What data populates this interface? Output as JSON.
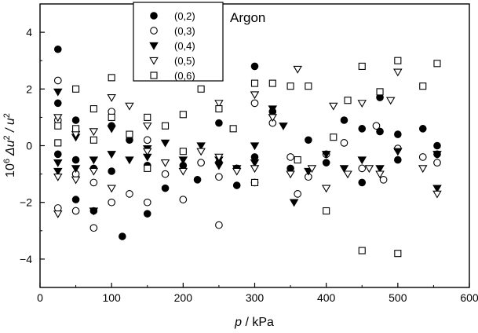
{
  "chart_data": {
    "type": "scatter",
    "annotation": "Argon",
    "xlabel_var": "p",
    "xlabel_unit": " / kPa",
    "ylabel_prefix": "10",
    "ylabel_prefix_sup": "6",
    "ylabel_mid": " Δu",
    "ylabel_mid_sup": "2",
    "ylabel_end": " / u",
    "ylabel_end_sup": "2",
    "xlim": [
      0,
      600
    ],
    "ylim": [
      -5,
      5
    ],
    "x_ticks": [
      0,
      100,
      200,
      300,
      400,
      500,
      600
    ],
    "y_ticks": [
      -4,
      -2,
      0,
      2,
      4
    ],
    "grid": false,
    "legend_position": "top-left (inside plot)",
    "series": [
      {
        "name": "(0,2)",
        "marker": "filled-circle",
        "points": [
          [
            25,
            3.4
          ],
          [
            25,
            1.5
          ],
          [
            25,
            -0.3
          ],
          [
            50,
            0.9
          ],
          [
            50,
            -0.5
          ],
          [
            50,
            -1.9
          ],
          [
            75,
            -0.8
          ],
          [
            75,
            -2.3
          ],
          [
            100,
            0.7
          ],
          [
            100,
            -0.9
          ],
          [
            115,
            -3.2
          ],
          [
            125,
            0.2
          ],
          [
            150,
            -2.4
          ],
          [
            150,
            -0.7
          ],
          [
            175,
            -1.5
          ],
          [
            200,
            -0.7
          ],
          [
            220,
            -1.2
          ],
          [
            250,
            0.8
          ],
          [
            250,
            -0.6
          ],
          [
            275,
            -1.4
          ],
          [
            300,
            2.8
          ],
          [
            300,
            -0.4
          ],
          [
            325,
            1.2
          ],
          [
            350,
            -0.8
          ],
          [
            375,
            0.2
          ],
          [
            400,
            -0.6
          ],
          [
            425,
            0.9
          ],
          [
            450,
            -1.3
          ],
          [
            450,
            0.6
          ],
          [
            475,
            1.7
          ],
          [
            475,
            0.5
          ],
          [
            500,
            0.4
          ],
          [
            500,
            -0.5
          ],
          [
            535,
            0.6
          ],
          [
            555,
            0.0
          ],
          [
            555,
            -0.3
          ]
        ]
      },
      {
        "name": "(0,3)",
        "marker": "open-circle",
        "points": [
          [
            25,
            2.3
          ],
          [
            25,
            -2.2
          ],
          [
            25,
            0.9
          ],
          [
            50,
            -2.3
          ],
          [
            50,
            -1.0
          ],
          [
            75,
            -2.9
          ],
          [
            75,
            -1.3
          ],
          [
            100,
            -2.0
          ],
          [
            100,
            1.2
          ],
          [
            125,
            -1.7
          ],
          [
            150,
            -2.0
          ],
          [
            150,
            0.2
          ],
          [
            175,
            -1.0
          ],
          [
            200,
            -1.9
          ],
          [
            225,
            -0.6
          ],
          [
            250,
            -2.8
          ],
          [
            250,
            -1.1
          ],
          [
            275,
            -0.8
          ],
          [
            300,
            1.5
          ],
          [
            300,
            -1.3
          ],
          [
            325,
            0.8
          ],
          [
            350,
            -0.4
          ],
          [
            360,
            -1.7
          ],
          [
            375,
            -1.1
          ],
          [
            400,
            -0.3
          ],
          [
            425,
            0.1
          ],
          [
            450,
            -0.8
          ],
          [
            470,
            0.7
          ],
          [
            480,
            -1.2
          ],
          [
            500,
            -0.1
          ],
          [
            535,
            -0.4
          ],
          [
            555,
            -0.6
          ]
        ]
      },
      {
        "name": "(0,4)",
        "marker": "filled-triangle-down",
        "points": [
          [
            25,
            1.9
          ],
          [
            25,
            -0.6
          ],
          [
            25,
            -0.9
          ],
          [
            50,
            0.3
          ],
          [
            50,
            -0.8
          ],
          [
            75,
            -0.5
          ],
          [
            75,
            -2.3
          ],
          [
            100,
            -0.3
          ],
          [
            100,
            0.6
          ],
          [
            125,
            -0.5
          ],
          [
            150,
            -0.1
          ],
          [
            150,
            -0.4
          ],
          [
            175,
            0.1
          ],
          [
            200,
            -0.5
          ],
          [
            225,
            0.0
          ],
          [
            250,
            -0.5
          ],
          [
            250,
            -0.7
          ],
          [
            275,
            -0.8
          ],
          [
            300,
            0.0
          ],
          [
            300,
            -0.6
          ],
          [
            325,
            1.3
          ],
          [
            340,
            0.7
          ],
          [
            355,
            -2.0
          ],
          [
            375,
            -0.9
          ],
          [
            400,
            -0.3
          ],
          [
            425,
            -0.8
          ],
          [
            450,
            -0.5
          ],
          [
            475,
            -0.8
          ],
          [
            500,
            -0.2
          ],
          [
            555,
            -1.5
          ],
          [
            555,
            -0.3
          ]
        ]
      },
      {
        "name": "(0,5)",
        "marker": "open-triangle-down",
        "points": [
          [
            25,
            -2.4
          ],
          [
            25,
            -1.1
          ],
          [
            25,
            1.0
          ],
          [
            50,
            -1.2
          ],
          [
            50,
            0.4
          ],
          [
            75,
            -0.9
          ],
          [
            75,
            0.5
          ],
          [
            100,
            -1.5
          ],
          [
            100,
            1.7
          ],
          [
            125,
            1.4
          ],
          [
            150,
            -0.2
          ],
          [
            150,
            0.7
          ],
          [
            175,
            -0.6
          ],
          [
            200,
            -0.9
          ],
          [
            225,
            -0.2
          ],
          [
            250,
            1.5
          ],
          [
            250,
            -0.4
          ],
          [
            275,
            -0.9
          ],
          [
            300,
            1.8
          ],
          [
            300,
            -0.8
          ],
          [
            325,
            1.0
          ],
          [
            350,
            -1.0
          ],
          [
            360,
            2.7
          ],
          [
            380,
            -0.8
          ],
          [
            400,
            -1.5
          ],
          [
            410,
            1.4
          ],
          [
            430,
            -1.0
          ],
          [
            450,
            1.5
          ],
          [
            460,
            -0.8
          ],
          [
            475,
            -1.0
          ],
          [
            490,
            1.6
          ],
          [
            500,
            2.6
          ],
          [
            535,
            -0.8
          ],
          [
            555,
            -1.7
          ]
        ]
      },
      {
        "name": "(0,6)",
        "marker": "open-square",
        "points": [
          [
            25,
            0.7
          ],
          [
            25,
            0.1
          ],
          [
            50,
            2.0
          ],
          [
            50,
            0.6
          ],
          [
            75,
            1.3
          ],
          [
            75,
            0.2
          ],
          [
            100,
            2.4
          ],
          [
            100,
            1.0
          ],
          [
            125,
            0.4
          ],
          [
            150,
            1.0
          ],
          [
            150,
            -0.8
          ],
          [
            175,
            0.7
          ],
          [
            200,
            1.1
          ],
          [
            200,
            -0.2
          ],
          [
            225,
            2.0
          ],
          [
            250,
            2.4
          ],
          [
            250,
            1.3
          ],
          [
            270,
            0.6
          ],
          [
            300,
            2.2
          ],
          [
            300,
            -1.3
          ],
          [
            325,
            2.2
          ],
          [
            350,
            2.1
          ],
          [
            360,
            -0.5
          ],
          [
            375,
            2.1
          ],
          [
            400,
            -2.3
          ],
          [
            410,
            0.3
          ],
          [
            430,
            1.6
          ],
          [
            450,
            2.8
          ],
          [
            450,
            -3.7
          ],
          [
            475,
            1.9
          ],
          [
            500,
            3.0
          ],
          [
            500,
            -3.8
          ],
          [
            535,
            2.1
          ],
          [
            555,
            2.9
          ]
        ]
      }
    ]
  }
}
